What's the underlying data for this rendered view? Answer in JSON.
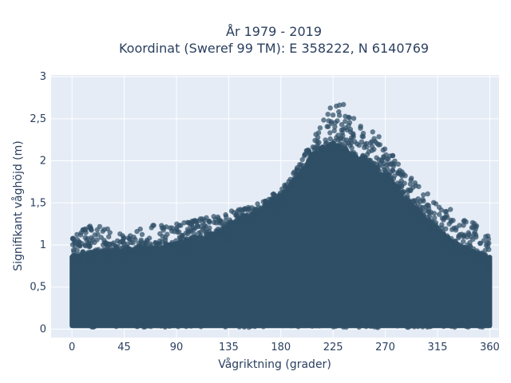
{
  "chart_data": {
    "type": "scatter",
    "title_line1": "År 1979 - 2019",
    "title_line2": "Koordinat (Sweref 99 TM): E 358222, N 6140769",
    "xlabel": "Vågriktning (grader)",
    "ylabel": "Signifikant våghöjd (m)",
    "xlim": [
      -18,
      368
    ],
    "ylim": [
      -0.1,
      3.02
    ],
    "x_ticks": [
      0,
      45,
      90,
      135,
      180,
      225,
      270,
      315,
      360
    ],
    "x_tick_labels": [
      "0",
      "45",
      "90",
      "135",
      "180",
      "225",
      "270",
      "315",
      "360"
    ],
    "y_ticks": [
      0,
      0.5,
      1,
      1.5,
      2,
      2.5,
      3
    ],
    "y_tick_labels": [
      "0",
      "0,5",
      "1",
      "1,5",
      "2",
      "2,5",
      "3"
    ],
    "grid": true,
    "colors": {
      "background": "#e5ecf6",
      "grid": "#ffffff",
      "marker": "#2f4f66"
    },
    "envelope": {
      "x": [
        0,
        10,
        20,
        30,
        45,
        60,
        75,
        90,
        105,
        120,
        135,
        150,
        165,
        180,
        195,
        205,
        215,
        225,
        235,
        245,
        255,
        265,
        275,
        285,
        300,
        315,
        330,
        345,
        360
      ],
      "y_upper": [
        1.1,
        1.2,
        1.3,
        1.2,
        1.15,
        1.2,
        1.25,
        1.25,
        1.3,
        1.35,
        1.4,
        1.45,
        1.55,
        1.65,
        1.95,
        2.2,
        2.45,
        2.75,
        2.7,
        2.55,
        2.4,
        2.3,
        2.1,
        1.9,
        1.7,
        1.5,
        1.4,
        1.3,
        1.1
      ],
      "y_dense": [
        0.85,
        0.85,
        0.9,
        0.9,
        0.9,
        0.95,
        0.95,
        1.0,
        1.05,
        1.1,
        1.2,
        1.3,
        1.4,
        1.55,
        1.8,
        2.0,
        2.1,
        2.15,
        2.1,
        2.0,
        1.95,
        1.85,
        1.75,
        1.55,
        1.35,
        1.15,
        1.0,
        0.9,
        0.85
      ]
    }
  }
}
